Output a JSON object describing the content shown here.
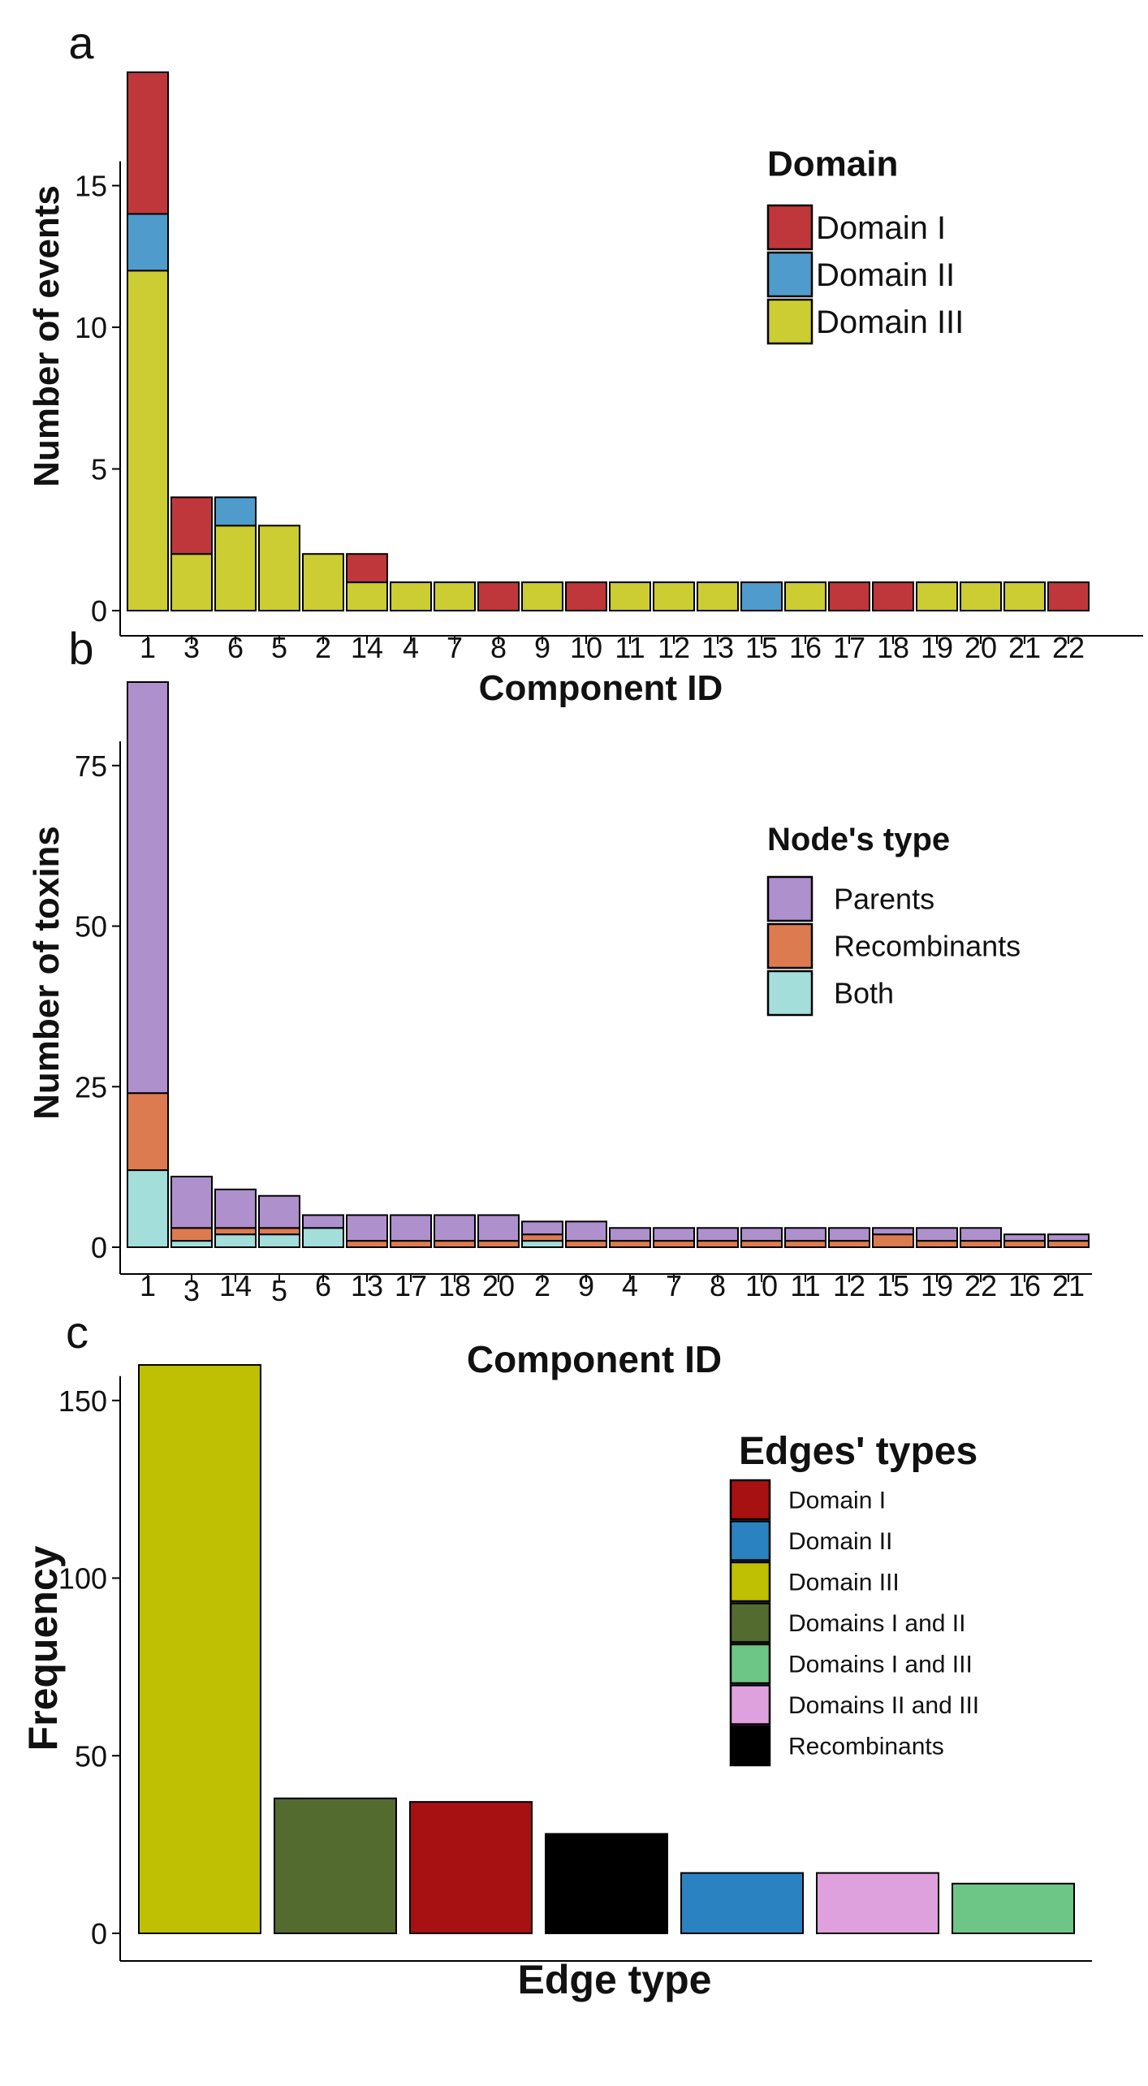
{
  "chart_data": [
    {
      "panel_label": "a",
      "type": "bar",
      "stacked": true,
      "xlabel": "Component ID",
      "ylabel": "Number of events",
      "ylim": [
        0,
        19
      ],
      "yticks": [
        0,
        5,
        10,
        15
      ],
      "categories": [
        "1",
        "3",
        "6",
        "5",
        "2",
        "14",
        "4",
        "7",
        "8",
        "9",
        "10",
        "11",
        "12",
        "13",
        "15",
        "16",
        "17",
        "18",
        "19",
        "20",
        "21",
        "22"
      ],
      "legend": {
        "title": "Domain",
        "position": "top-right"
      },
      "series": [
        {
          "name": "Domain III",
          "color": "#cccc33",
          "values": [
            12,
            2,
            3,
            3,
            2,
            1,
            1,
            1,
            0,
            1,
            0,
            1,
            1,
            1,
            0,
            1,
            0,
            0,
            1,
            1,
            1,
            0
          ]
        },
        {
          "name": "Domain II",
          "color": "#4f9bcb",
          "values": [
            2,
            0,
            1,
            0,
            0,
            0,
            0,
            0,
            0,
            0,
            0,
            0,
            0,
            0,
            1,
            0,
            0,
            0,
            0,
            0,
            0,
            0
          ]
        },
        {
          "name": "Domain I",
          "color": "#bf373b",
          "values": [
            5,
            2,
            0,
            0,
            0,
            1,
            0,
            0,
            1,
            0,
            1,
            0,
            0,
            0,
            0,
            0,
            1,
            1,
            0,
            0,
            0,
            1
          ]
        }
      ],
      "legend_order": [
        "Domain I",
        "Domain II",
        "Domain III"
      ]
    },
    {
      "panel_label": "b",
      "type": "bar",
      "stacked": true,
      "xlabel": "Component ID",
      "ylabel": "Number of toxins",
      "ylim": [
        0,
        88
      ],
      "yticks": [
        0,
        25,
        50,
        75
      ],
      "categories": [
        "1",
        "3",
        "14",
        "5",
        "6",
        "13",
        "17",
        "18",
        "20",
        "2",
        "9",
        "4",
        "7",
        "8",
        "10",
        "11",
        "12",
        "15",
        "19",
        "22",
        "16",
        "21"
      ],
      "legend": {
        "title": "Node's type",
        "position": "right"
      },
      "series": [
        {
          "name": "Both",
          "color": "#a3dedb",
          "values": [
            12,
            1,
            2,
            2,
            3,
            0,
            0,
            0,
            0,
            1,
            0,
            0,
            0,
            0,
            0,
            0,
            0,
            0,
            0,
            0,
            0,
            0
          ]
        },
        {
          "name": "Recombinants",
          "color": "#dd7b50",
          "values": [
            12,
            2,
            1,
            1,
            0,
            1,
            1,
            1,
            1,
            1,
            1,
            1,
            1,
            1,
            1,
            1,
            1,
            2,
            1,
            1,
            1,
            1
          ]
        },
        {
          "name": "Parents",
          "color": "#ae90cd",
          "values": [
            64,
            8,
            6,
            5,
            2,
            4,
            4,
            4,
            4,
            2,
            3,
            2,
            2,
            2,
            2,
            2,
            2,
            1,
            2,
            2,
            1,
            1
          ]
        }
      ],
      "legend_order": [
        "Parents",
        "Recombinants",
        "Both"
      ]
    },
    {
      "panel_label": "c",
      "type": "bar",
      "title": "Component ID",
      "xlabel": "Edge type",
      "ylabel": "Frequency",
      "ylim": [
        0,
        160
      ],
      "yticks": [
        0,
        50,
        100,
        150
      ],
      "categories": [
        "Domain III",
        "Domains I and II",
        "Domain I",
        "Recombinants",
        "Domain II",
        "Domains II and III",
        "Domains I and III"
      ],
      "values": [
        160,
        38,
        37,
        28,
        17,
        17,
        14
      ],
      "colors": [
        "#bfbf03",
        "#536b2f",
        "#a71111",
        "#000000",
        "#2b82c0",
        "#dfa1dd",
        "#6ec686"
      ],
      "show_x_tick_labels": false,
      "legend": {
        "title": "Edges' types",
        "position": "top-right"
      },
      "legend_items": [
        {
          "name": "Domain I",
          "color": "#a71111"
        },
        {
          "name": "Domain II",
          "color": "#2b82c0"
        },
        {
          "name": "Domain III",
          "color": "#bfbf03"
        },
        {
          "name": "Domains I and II",
          "color": "#536b2f"
        },
        {
          "name": "Domains I and III",
          "color": "#6ec686"
        },
        {
          "name": "Domains II and III",
          "color": "#dfa1dd"
        },
        {
          "name": "Recombinants",
          "color": "#000000"
        }
      ]
    }
  ]
}
